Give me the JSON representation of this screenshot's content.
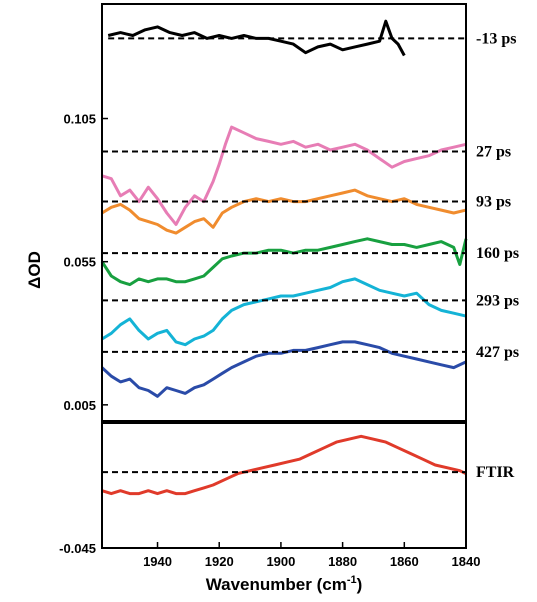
{
  "chart_data": {
    "type": "line",
    "title": "",
    "xlabel": "Wavenumber (cm",
    "xlabel_superscript": "-1",
    "xlabel_suffix": ")",
    "ylabel": "ΔOD",
    "xlim": [
      1958,
      1840
    ],
    "x_reversed": true,
    "ylim": [
      -0.045,
      0.145
    ],
    "x_ticks": [
      1940,
      1920,
      1900,
      1880,
      1860,
      1840
    ],
    "y_ticks": [
      0.105,
      0.055,
      0.005,
      -0.045
    ],
    "y_tick_labels": [
      "0.105",
      "0.055",
      "0.005",
      "-0.045"
    ],
    "panel_divider_y": -0.001,
    "panels": [
      "top",
      "bottom"
    ],
    "series": [
      {
        "name": "-13 ps",
        "color": "#000000",
        "baseline": 0.133,
        "panel": "top",
        "x": [
          1956,
          1952,
          1948,
          1944,
          1940,
          1936,
          1932,
          1928,
          1924,
          1920,
          1916,
          1912,
          1908,
          1904,
          1900,
          1896,
          1892,
          1888,
          1884,
          1880,
          1876,
          1872,
          1868,
          1866,
          1864,
          1862,
          1860
        ],
        "y": [
          0.134,
          0.135,
          0.134,
          0.136,
          0.137,
          0.135,
          0.134,
          0.135,
          0.133,
          0.134,
          0.133,
          0.134,
          0.133,
          0.133,
          0.132,
          0.131,
          0.128,
          0.13,
          0.131,
          0.129,
          0.13,
          0.131,
          0.132,
          0.139,
          0.133,
          0.131,
          0.127
        ]
      },
      {
        "name": "27 ps",
        "color": "#E77DB5",
        "baseline": 0.0935,
        "panel": "top",
        "x": [
          1958,
          1955,
          1952,
          1949,
          1946,
          1943,
          1940,
          1937,
          1934,
          1931,
          1928,
          1925,
          1922,
          1920,
          1918,
          1916,
          1912,
          1908,
          1904,
          1900,
          1896,
          1892,
          1888,
          1884,
          1880,
          1876,
          1872,
          1868,
          1864,
          1860,
          1856,
          1852,
          1848,
          1844,
          1840
        ],
        "y": [
          0.085,
          0.084,
          0.078,
          0.08,
          0.076,
          0.081,
          0.077,
          0.072,
          0.068,
          0.074,
          0.078,
          0.076,
          0.083,
          0.089,
          0.096,
          0.102,
          0.1,
          0.098,
          0.097,
          0.096,
          0.097,
          0.095,
          0.096,
          0.094,
          0.095,
          0.096,
          0.094,
          0.091,
          0.088,
          0.09,
          0.091,
          0.092,
          0.094,
          0.095,
          0.096
        ]
      },
      {
        "name": "93 ps",
        "color": "#F08C2E",
        "baseline": 0.076,
        "panel": "top",
        "x": [
          1958,
          1955,
          1952,
          1949,
          1946,
          1943,
          1940,
          1937,
          1934,
          1931,
          1928,
          1925,
          1922,
          1919,
          1916,
          1912,
          1908,
          1904,
          1900,
          1896,
          1892,
          1888,
          1884,
          1880,
          1876,
          1872,
          1868,
          1864,
          1860,
          1856,
          1852,
          1848,
          1844,
          1840
        ],
        "y": [
          0.072,
          0.074,
          0.075,
          0.073,
          0.07,
          0.069,
          0.068,
          0.066,
          0.065,
          0.067,
          0.069,
          0.07,
          0.067,
          0.072,
          0.074,
          0.076,
          0.077,
          0.076,
          0.077,
          0.076,
          0.076,
          0.077,
          0.078,
          0.079,
          0.08,
          0.078,
          0.077,
          0.076,
          0.077,
          0.075,
          0.074,
          0.073,
          0.072,
          0.073
        ]
      },
      {
        "name": "160 ps",
        "color": "#18A040",
        "baseline": 0.058,
        "panel": "top",
        "x": [
          1958,
          1955,
          1952,
          1949,
          1946,
          1943,
          1940,
          1937,
          1934,
          1931,
          1928,
          1925,
          1922,
          1919,
          1916,
          1912,
          1908,
          1904,
          1900,
          1896,
          1892,
          1888,
          1884,
          1880,
          1876,
          1872,
          1868,
          1864,
          1860,
          1856,
          1852,
          1848,
          1844,
          1842,
          1840
        ],
        "y": [
          0.055,
          0.05,
          0.048,
          0.047,
          0.049,
          0.048,
          0.049,
          0.049,
          0.048,
          0.048,
          0.049,
          0.05,
          0.053,
          0.056,
          0.057,
          0.058,
          0.058,
          0.059,
          0.059,
          0.058,
          0.059,
          0.059,
          0.06,
          0.061,
          0.062,
          0.063,
          0.062,
          0.061,
          0.061,
          0.06,
          0.061,
          0.062,
          0.06,
          0.054,
          0.063
        ]
      },
      {
        "name": "293 ps",
        "color": "#14B3D6",
        "baseline": 0.0415,
        "panel": "top",
        "x": [
          1958,
          1955,
          1952,
          1949,
          1946,
          1943,
          1940,
          1937,
          1934,
          1931,
          1928,
          1925,
          1922,
          1919,
          1916,
          1912,
          1908,
          1904,
          1900,
          1896,
          1892,
          1888,
          1884,
          1880,
          1876,
          1872,
          1868,
          1864,
          1860,
          1856,
          1852,
          1848,
          1844,
          1840
        ],
        "y": [
          0.028,
          0.03,
          0.033,
          0.035,
          0.031,
          0.028,
          0.03,
          0.031,
          0.027,
          0.026,
          0.028,
          0.029,
          0.031,
          0.035,
          0.038,
          0.04,
          0.041,
          0.042,
          0.043,
          0.043,
          0.044,
          0.045,
          0.046,
          0.048,
          0.049,
          0.047,
          0.045,
          0.044,
          0.043,
          0.044,
          0.04,
          0.038,
          0.037,
          0.036
        ]
      },
      {
        "name": "427 ps",
        "color": "#2A4BA8",
        "baseline": 0.0235,
        "panel": "top",
        "x": [
          1958,
          1955,
          1952,
          1949,
          1946,
          1943,
          1940,
          1937,
          1934,
          1931,
          1928,
          1925,
          1922,
          1919,
          1916,
          1912,
          1908,
          1904,
          1900,
          1896,
          1892,
          1888,
          1884,
          1880,
          1876,
          1872,
          1868,
          1864,
          1860,
          1856,
          1852,
          1848,
          1844,
          1840
        ],
        "y": [
          0.018,
          0.015,
          0.013,
          0.014,
          0.011,
          0.01,
          0.008,
          0.011,
          0.01,
          0.009,
          0.011,
          0.012,
          0.014,
          0.016,
          0.018,
          0.02,
          0.022,
          0.023,
          0.023,
          0.024,
          0.024,
          0.025,
          0.026,
          0.027,
          0.027,
          0.026,
          0.025,
          0.023,
          0.022,
          0.021,
          0.02,
          0.019,
          0.018,
          0.02
        ]
      },
      {
        "name": "FTIR",
        "color": "#E03A2A",
        "baseline": -0.0185,
        "panel": "bottom",
        "x": [
          1958,
          1955,
          1952,
          1949,
          1946,
          1943,
          1940,
          1937,
          1934,
          1931,
          1928,
          1925,
          1922,
          1918,
          1914,
          1910,
          1906,
          1902,
          1898,
          1894,
          1890,
          1886,
          1882,
          1878,
          1874,
          1870,
          1866,
          1862,
          1858,
          1854,
          1850,
          1846,
          1842,
          1840
        ],
        "y": [
          -0.025,
          -0.026,
          -0.025,
          -0.026,
          -0.026,
          -0.025,
          -0.026,
          -0.025,
          -0.026,
          -0.026,
          -0.025,
          -0.024,
          -0.023,
          -0.021,
          -0.019,
          -0.018,
          -0.017,
          -0.016,
          -0.015,
          -0.014,
          -0.012,
          -0.01,
          -0.008,
          -0.007,
          -0.006,
          -0.007,
          -0.008,
          -0.01,
          -0.012,
          -0.014,
          -0.016,
          -0.017,
          -0.018,
          -0.019
        ]
      }
    ]
  }
}
